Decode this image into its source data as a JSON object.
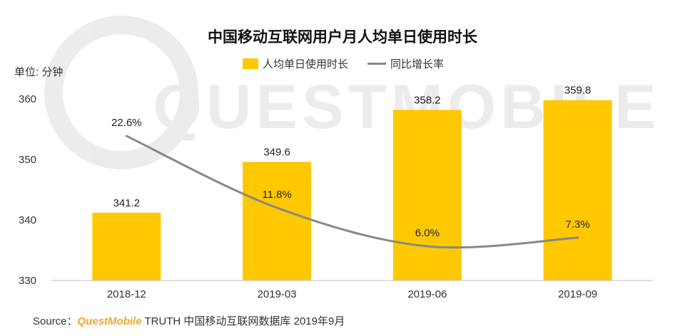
{
  "chart_data": {
    "type": "bar",
    "title": "中国移动互联网用户月人均单日使用时长",
    "unit_label": "单位: 分钟",
    "categories": [
      "2018-12",
      "2019-03",
      "2019-06",
      "2019-09"
    ],
    "series": [
      {
        "name": "人均单日使用时长",
        "type": "bar",
        "values": [
          341.2,
          349.6,
          358.2,
          359.8
        ],
        "value_labels": [
          "341.2",
          "349.6",
          "358.2",
          "359.8"
        ],
        "color": "#FFC800"
      },
      {
        "name": "同比增长率",
        "type": "line",
        "values": [
          22.6,
          11.8,
          6.0,
          7.3
        ],
        "value_labels": [
          "22.6%",
          "11.8%",
          "6.0%",
          "7.3%"
        ],
        "color": "#888888"
      }
    ],
    "ylim": [
      330,
      360
    ],
    "yticks": [
      "330",
      "340",
      "350",
      "360"
    ],
    "grid": false,
    "legend": "top-center"
  },
  "watermark": "QUESTMOBILE",
  "source": {
    "prefix": "Source：",
    "brand": "QuestMobile",
    "rest": " TRUTH 中国移动互联网数据库 2019年9月",
    "brand_color": "#F5A623"
  }
}
